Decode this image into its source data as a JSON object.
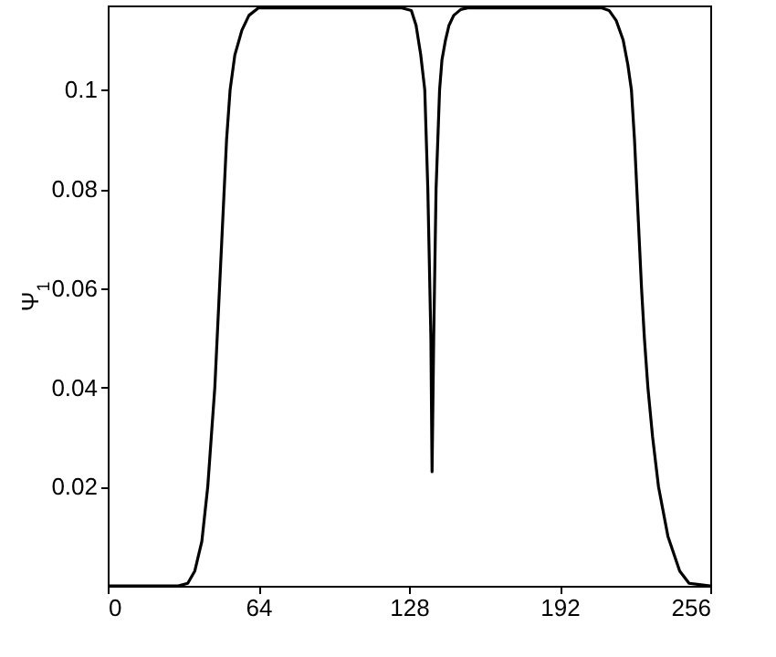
{
  "chart_data": {
    "type": "line",
    "ylabel": "Ψ$_{1}$",
    "xlim": [
      0,
      256
    ],
    "xticks": [
      0,
      64,
      128,
      192,
      256
    ],
    "ylim": [
      0,
      0.117
    ],
    "yticks": [
      0.02,
      0.04,
      0.06,
      0.08,
      0.1
    ],
    "grid": false,
    "marker": "none",
    "line_style": "solid",
    "series": [
      {
        "color": "#000000",
        "x": [
          0,
          30,
          34,
          37,
          40,
          42.5,
          44,
          45.5,
          46.5,
          47.5,
          48.5,
          49.5,
          50.5,
          52,
          54,
          57,
          60,
          64,
          100,
          125,
          129,
          131,
          133,
          134.7,
          136,
          137.3,
          137.8,
          138.5,
          139.5,
          141,
          142,
          143.5,
          145,
          147,
          150,
          153,
          160,
          200,
          210,
          213,
          216,
          219,
          221,
          222.5,
          223.8,
          224.8,
          225.8,
          226.8,
          228,
          229.5,
          231.5,
          234,
          238,
          243,
          247,
          256
        ],
        "values": [
          0,
          0,
          0.0005,
          0.003,
          0.009,
          0.02,
          0.03,
          0.04,
          0.05,
          0.06,
          0.07,
          0.08,
          0.09,
          0.1,
          0.107,
          0.112,
          0.115,
          0.1165,
          0.1165,
          0.1165,
          0.116,
          0.113,
          0.107,
          0.1,
          0.08,
          0.05,
          0.023,
          0.05,
          0.08,
          0.1,
          0.106,
          0.11,
          0.113,
          0.115,
          0.1162,
          0.1165,
          0.1165,
          0.1165,
          0.1165,
          0.116,
          0.114,
          0.11,
          0.105,
          0.1,
          0.09,
          0.08,
          0.07,
          0.06,
          0.05,
          0.04,
          0.03,
          0.02,
          0.01,
          0.003,
          0.0005,
          0
        ]
      }
    ]
  }
}
